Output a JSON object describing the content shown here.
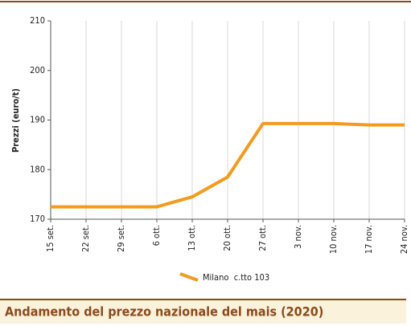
{
  "chart_data": {
    "type": "line",
    "title": "Andamento del prezzo nazionale del mais (2020)",
    "y_label": "Prezzi (euro/t)",
    "categories": [
      "15 set.",
      "22 set.",
      "29 set.",
      "6 ott.",
      "13 ott.",
      "20 ott.",
      "27 ott.",
      "3 nov.",
      "10 nov.",
      "17 nov.",
      "24 nov."
    ],
    "series": [
      {
        "name": "Milano  c.tto 103",
        "color": "#f29b1d",
        "values": [
          172.5,
          172.5,
          172.5,
          172.5,
          174.5,
          178.5,
          189.3,
          189.3,
          189.3,
          189,
          189
        ]
      }
    ],
    "ylim": [
      170,
      210
    ],
    "yticks": [
      170,
      180,
      190,
      200,
      210
    ],
    "grid": true
  }
}
